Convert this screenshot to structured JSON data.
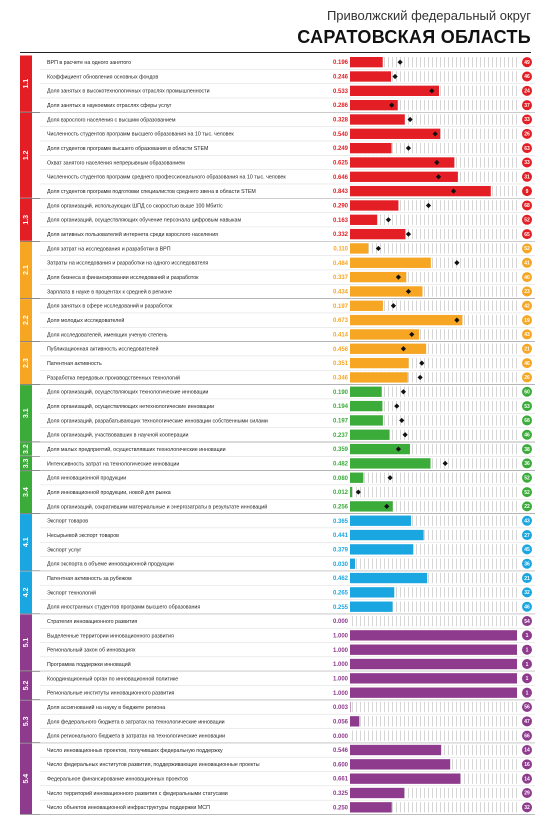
{
  "header": {
    "subtitle": "Приволжский федеральный округ",
    "title": "САРАТОВСКАЯ ОБЛАСТЬ"
  },
  "colors": {
    "red": "#e31e24",
    "orange": "#f6a623",
    "green": "#3bab3a",
    "blue": "#1aa6e1",
    "purple": "#8e3a8d",
    "hatch": "#c8c8c8"
  },
  "chart_data": {
    "type": "bar",
    "groups": [
      {
        "label": "1.1",
        "color": "red"
      },
      {
        "label": "1.2",
        "color": "red"
      },
      {
        "label": "1.3",
        "color": "red"
      },
      {
        "label": "2.1",
        "color": "orange"
      },
      {
        "label": "2.2",
        "color": "orange"
      },
      {
        "label": "2.3",
        "color": "orange"
      },
      {
        "label": "3.1",
        "color": "green"
      },
      {
        "label": "3.2",
        "color": "green"
      },
      {
        "label": "3.3",
        "color": "green"
      },
      {
        "label": "3.4",
        "color": "green"
      },
      {
        "label": "4.1",
        "color": "blue"
      },
      {
        "label": "4.2",
        "color": "blue"
      },
      {
        "label": "5.1",
        "color": "purple"
      },
      {
        "label": "5.2",
        "color": "purple"
      },
      {
        "label": "5.3",
        "color": "purple"
      },
      {
        "label": "5.4",
        "color": "purple"
      }
    ],
    "rows": [
      {
        "g": 0,
        "label": "ВРП в расчете на одного занятого",
        "value": "0.196",
        "bar": 0.196,
        "marker": 0.3,
        "rank": "49"
      },
      {
        "g": 0,
        "label": "Коэффициент обновления основных фондов",
        "value": "0.246",
        "bar": 0.246,
        "marker": 0.27,
        "rank": "46"
      },
      {
        "g": 0,
        "label": "Доля занятых в высокотехнологичных отраслях промышленности",
        "value": "0.533",
        "bar": 0.533,
        "marker": 0.49,
        "rank": "24"
      },
      {
        "g": 0,
        "label": "Доля занятых в наукоемких отраслях сферы услуг",
        "value": "0.286",
        "bar": 0.286,
        "marker": 0.25,
        "rank": "37"
      },
      {
        "g": 1,
        "label": "Доля взрослого населения с высшим образованием",
        "value": "0.328",
        "bar": 0.328,
        "marker": 0.36,
        "rank": "33"
      },
      {
        "g": 1,
        "label": "Численность студентов программ высшего образования на 10 тыс. человек",
        "value": "0.540",
        "bar": 0.54,
        "marker": 0.51,
        "rank": "26"
      },
      {
        "g": 1,
        "label": "Доля студентов программ высшего образования в области STEM",
        "value": "0.249",
        "bar": 0.249,
        "marker": 0.35,
        "rank": "63"
      },
      {
        "g": 1,
        "label": "Охват занятого населения непрерывным образованием",
        "value": "0.625",
        "bar": 0.625,
        "marker": 0.52,
        "rank": "33"
      },
      {
        "g": 1,
        "label": "Численность студентов программ среднего профессионального образования на 10 тыс. человек",
        "value": "0.646",
        "bar": 0.646,
        "marker": 0.53,
        "rank": "31"
      },
      {
        "g": 1,
        "label": "Доля студентов программ подготовки специалистов среднего звена в области STEM",
        "value": "0.843",
        "bar": 0.843,
        "marker": 0.62,
        "rank": "9"
      },
      {
        "g": 2,
        "label": "Доля организаций, использующих ШПД со скоростью выше 100 Мбит/с",
        "value": "0.290",
        "bar": 0.29,
        "marker": 0.47,
        "rank": "68"
      },
      {
        "g": 2,
        "label": "Доля организаций, осуществляющих обучение персонала цифровым навыкам",
        "value": "0.163",
        "bar": 0.163,
        "marker": 0.23,
        "rank": "52"
      },
      {
        "g": 2,
        "label": "Доля активных пользователей интернета среди взрослого населения",
        "value": "0.332",
        "bar": 0.332,
        "marker": 0.35,
        "rank": "65"
      },
      {
        "g": 3,
        "label": "Доля затрат на исследования и разработки в ВРП",
        "value": "0.110",
        "bar": 0.11,
        "marker": 0.17,
        "rank": "52"
      },
      {
        "g": 3,
        "label": "Затраты на исследования и разработки на одного исследователя",
        "value": "0.484",
        "bar": 0.484,
        "marker": 0.64,
        "rank": "41"
      },
      {
        "g": 3,
        "label": "Доля бизнеса в финансировании исследований и разработок",
        "value": "0.337",
        "bar": 0.337,
        "marker": 0.29,
        "rank": "40"
      },
      {
        "g": 3,
        "label": "Зарплата в науке в процентах к средней в регионе",
        "value": "0.434",
        "bar": 0.434,
        "marker": 0.35,
        "rank": "23"
      },
      {
        "g": 4,
        "label": "Доля занятых в сфере исследований и разработок",
        "value": "0.197",
        "bar": 0.197,
        "marker": 0.26,
        "rank": "42"
      },
      {
        "g": 4,
        "label": "Доля молодых исследователей",
        "value": "0.673",
        "bar": 0.673,
        "marker": 0.64,
        "rank": "19"
      },
      {
        "g": 4,
        "label": "Доля исследователей, имеющих ученую степень",
        "value": "0.414",
        "bar": 0.414,
        "marker": 0.37,
        "rank": "43"
      },
      {
        "g": 5,
        "label": "Публикационная активность исследователей",
        "value": "0.456",
        "bar": 0.456,
        "marker": 0.32,
        "rank": "21"
      },
      {
        "g": 5,
        "label": "Патентная активность",
        "value": "0.351",
        "bar": 0.351,
        "marker": 0.43,
        "rank": "46"
      },
      {
        "g": 5,
        "label": "Разработка передовых производственных технологий",
        "value": "0.346",
        "bar": 0.346,
        "marker": 0.42,
        "rank": "26"
      },
      {
        "g": 6,
        "label": "Доля организаций, осуществляющих технологические инновации",
        "value": "0.190",
        "bar": 0.19,
        "marker": 0.32,
        "rank": "60"
      },
      {
        "g": 6,
        "label": "Доля организаций, осуществляющих нетехнологические инновации",
        "value": "0.194",
        "bar": 0.194,
        "marker": 0.28,
        "rank": "53"
      },
      {
        "g": 6,
        "label": "Доля организаций, разрабатывающих технологические инновации собственными силами",
        "value": "0.197",
        "bar": 0.197,
        "marker": 0.31,
        "rank": "68"
      },
      {
        "g": 6,
        "label": "Доля организаций, участвовавших в научной кооперации",
        "value": "0.237",
        "bar": 0.237,
        "marker": 0.33,
        "rank": "46"
      },
      {
        "g": 7,
        "label": "Доля малых предприятий, осуществлявших технологические инновации",
        "value": "0.359",
        "bar": 0.359,
        "marker": 0.29,
        "rank": "38"
      },
      {
        "g": 8,
        "label": "Интенсивность затрат на технологические инновации",
        "value": "0.482",
        "bar": 0.482,
        "marker": 0.57,
        "rank": "36"
      },
      {
        "g": 9,
        "label": "Доля инновационной продукции",
        "value": "0.080",
        "bar": 0.08,
        "marker": 0.24,
        "rank": "52"
      },
      {
        "g": 9,
        "label": "Доля инновационной продукции, новой для рынка",
        "value": "0.012",
        "bar": 0.012,
        "marker": 0.05,
        "rank": "52"
      },
      {
        "g": 9,
        "label": "Доля организаций, сократившим материальные и энергозатраты в результате инноваций",
        "value": "0.256",
        "bar": 0.256,
        "marker": 0.22,
        "rank": "22"
      },
      {
        "g": 10,
        "label": "Экспорт товаров",
        "value": "0.365",
        "bar": 0.365,
        "marker": null,
        "rank": "43"
      },
      {
        "g": 10,
        "label": "Несырьевой экспорт товаров",
        "value": "0.441",
        "bar": 0.441,
        "marker": null,
        "rank": "27"
      },
      {
        "g": 10,
        "label": "Экспорт услуг",
        "value": "0.379",
        "bar": 0.379,
        "marker": null,
        "rank": "45"
      },
      {
        "g": 10,
        "label": "Доля экспорта в объеме инновационной продукции",
        "value": "0.030",
        "bar": 0.03,
        "marker": null,
        "rank": "36"
      },
      {
        "g": 11,
        "label": "Патентная активность за рубежом",
        "value": "0.462",
        "bar": 0.462,
        "marker": null,
        "rank": "21"
      },
      {
        "g": 11,
        "label": "Экспорт технологий",
        "value": "0.265",
        "bar": 0.265,
        "marker": null,
        "rank": "32"
      },
      {
        "g": 11,
        "label": "Доля иностранных студентов программ высшего образования",
        "value": "0.255",
        "bar": 0.255,
        "marker": null,
        "rank": "46"
      },
      {
        "g": 12,
        "label": "Стратегия инновационного развития",
        "value": "0.000",
        "bar": 0.0,
        "marker": null,
        "rank": "54"
      },
      {
        "g": 12,
        "label": "Выделенные территории инновационного развития",
        "value": "1.000",
        "bar": 1.0,
        "marker": null,
        "rank": "1"
      },
      {
        "g": 12,
        "label": "Региональный закон об инновациях",
        "value": "1.000",
        "bar": 1.0,
        "marker": null,
        "rank": "1"
      },
      {
        "g": 12,
        "label": "Программа поддержки инноваций",
        "value": "1.000",
        "bar": 1.0,
        "marker": null,
        "rank": "1"
      },
      {
        "g": 13,
        "label": "Координационный орган по инновационной политике",
        "value": "1.000",
        "bar": 1.0,
        "marker": null,
        "rank": "1"
      },
      {
        "g": 13,
        "label": "Региональные институты инновационного развития",
        "value": "1.000",
        "bar": 1.0,
        "marker": null,
        "rank": "1"
      },
      {
        "g": 14,
        "label": "Доля ассигнований на науку в бюджете региона",
        "value": "0.003",
        "bar": 0.003,
        "marker": null,
        "rank": "56"
      },
      {
        "g": 14,
        "label": "Доля федерального бюджета в затратах на технологические инновации",
        "value": "0.056",
        "bar": 0.056,
        "marker": null,
        "rank": "47"
      },
      {
        "g": 14,
        "label": "Доля регионального бюджета в затратах на технологические инновации",
        "value": "0.000",
        "bar": 0.0,
        "marker": null,
        "rank": "66"
      },
      {
        "g": 15,
        "label": "Число инновационных проектов, получивших федеральную поддержку",
        "value": "0.546",
        "bar": 0.546,
        "marker": null,
        "rank": "14"
      },
      {
        "g": 15,
        "label": "Число федеральных институтов развития, поддерживающих инновационные проекты",
        "value": "0.600",
        "bar": 0.6,
        "marker": null,
        "rank": "16"
      },
      {
        "g": 15,
        "label": "Федеральное финансирование инновационных проектов",
        "value": "0.661",
        "bar": 0.661,
        "marker": null,
        "rank": "14"
      },
      {
        "g": 15,
        "label": "Число территорий инновационного развития с федеральными статусами",
        "value": "0.325",
        "bar": 0.325,
        "marker": null,
        "rank": "29"
      },
      {
        "g": 15,
        "label": "Число объектов инновационной инфраструктуры поддержки МСП",
        "value": "0.250",
        "bar": 0.25,
        "marker": null,
        "rank": "32"
      }
    ]
  }
}
